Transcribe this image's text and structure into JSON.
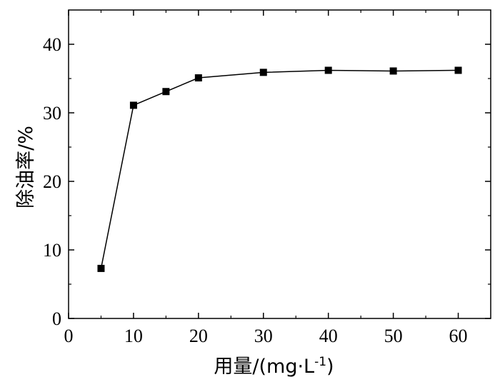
{
  "chart_data": {
    "type": "line",
    "xlabel": "用量/(mg·L",
    "xlabel_sup": "-1",
    "xlabel_close": ")",
    "ylabel": "除油率/%",
    "xlim": [
      0,
      65
    ],
    "ylim": [
      0,
      45
    ],
    "x_ticks": [
      0,
      10,
      20,
      30,
      40,
      50,
      60
    ],
    "y_ticks": [
      0,
      10,
      20,
      30,
      40
    ],
    "x_tick_labels": [
      "0",
      "10",
      "20",
      "30",
      "40",
      "50",
      "60"
    ],
    "y_tick_labels": [
      "0",
      "10",
      "20",
      "30",
      "40"
    ],
    "grid": false,
    "marker": "square",
    "series": [
      {
        "x": [
          5,
          10,
          15,
          20,
          30,
          40,
          50,
          60
        ],
        "y": [
          7.3,
          31.1,
          33.1,
          35.1,
          35.9,
          36.2,
          36.1,
          36.2
        ],
        "color": "#000000"
      }
    ]
  }
}
